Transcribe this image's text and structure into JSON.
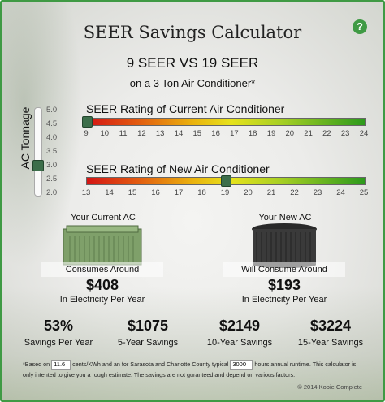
{
  "header": {
    "title": "SEER Savings Calculator",
    "help_symbol": "?",
    "comparison": "9 SEER VS 19 SEER",
    "subtitle": "on a 3 Ton Air Conditioner*"
  },
  "tonnage": {
    "label": "AC Tonnage",
    "ticks": [
      "5.0",
      "4.5",
      "4.0",
      "3.5",
      "3.0",
      "2.5",
      "2.0"
    ],
    "value": 3.0
  },
  "current_seer": {
    "label": "SEER Rating of Current Air Conditioner",
    "ticks": [
      "9",
      "10",
      "11",
      "12",
      "13",
      "14",
      "15",
      "16",
      "17",
      "18",
      "19",
      "20",
      "21",
      "22",
      "23",
      "24"
    ],
    "value": 9
  },
  "new_seer": {
    "label": "SEER Rating of New Air Conditioner",
    "ticks": [
      "13",
      "14",
      "15",
      "16",
      "17",
      "18",
      "19",
      "20",
      "21",
      "22",
      "23",
      "24",
      "25"
    ],
    "value": 19
  },
  "current_unit": {
    "title": "Your Current AC",
    "consumes": "Consumes Around",
    "amount": "$408",
    "sub": "In Electricity Per Year"
  },
  "new_unit": {
    "title": "Your New AC",
    "consumes": "Will Consume Around",
    "amount": "$193",
    "sub": "In Electricity Per Year"
  },
  "stats": [
    {
      "value": "53%",
      "label": "Savings Per Year"
    },
    {
      "value": "$1075",
      "label": "5-Year Savings"
    },
    {
      "value": "$2149",
      "label": "10-Year Savings"
    },
    {
      "value": "$3224",
      "label": "15-Year Savings"
    }
  ],
  "footnote": {
    "part1": "*Based on",
    "rate": "11.6",
    "part2": "cents/KWh and an for Sarasota and Charlotte County typical",
    "hours": "3000",
    "part3": "hours annual runtime. This calculator is only intented to give you a rough estimate. The savings are not guranteed and depend on various factors.",
    "copyright": "© 2014 Kobie Complete"
  },
  "colors": {
    "accent": "#3f9a44",
    "thumb": "#3c6e4a",
    "gradient_low": "#d41515",
    "gradient_high": "#2d9a1c"
  }
}
